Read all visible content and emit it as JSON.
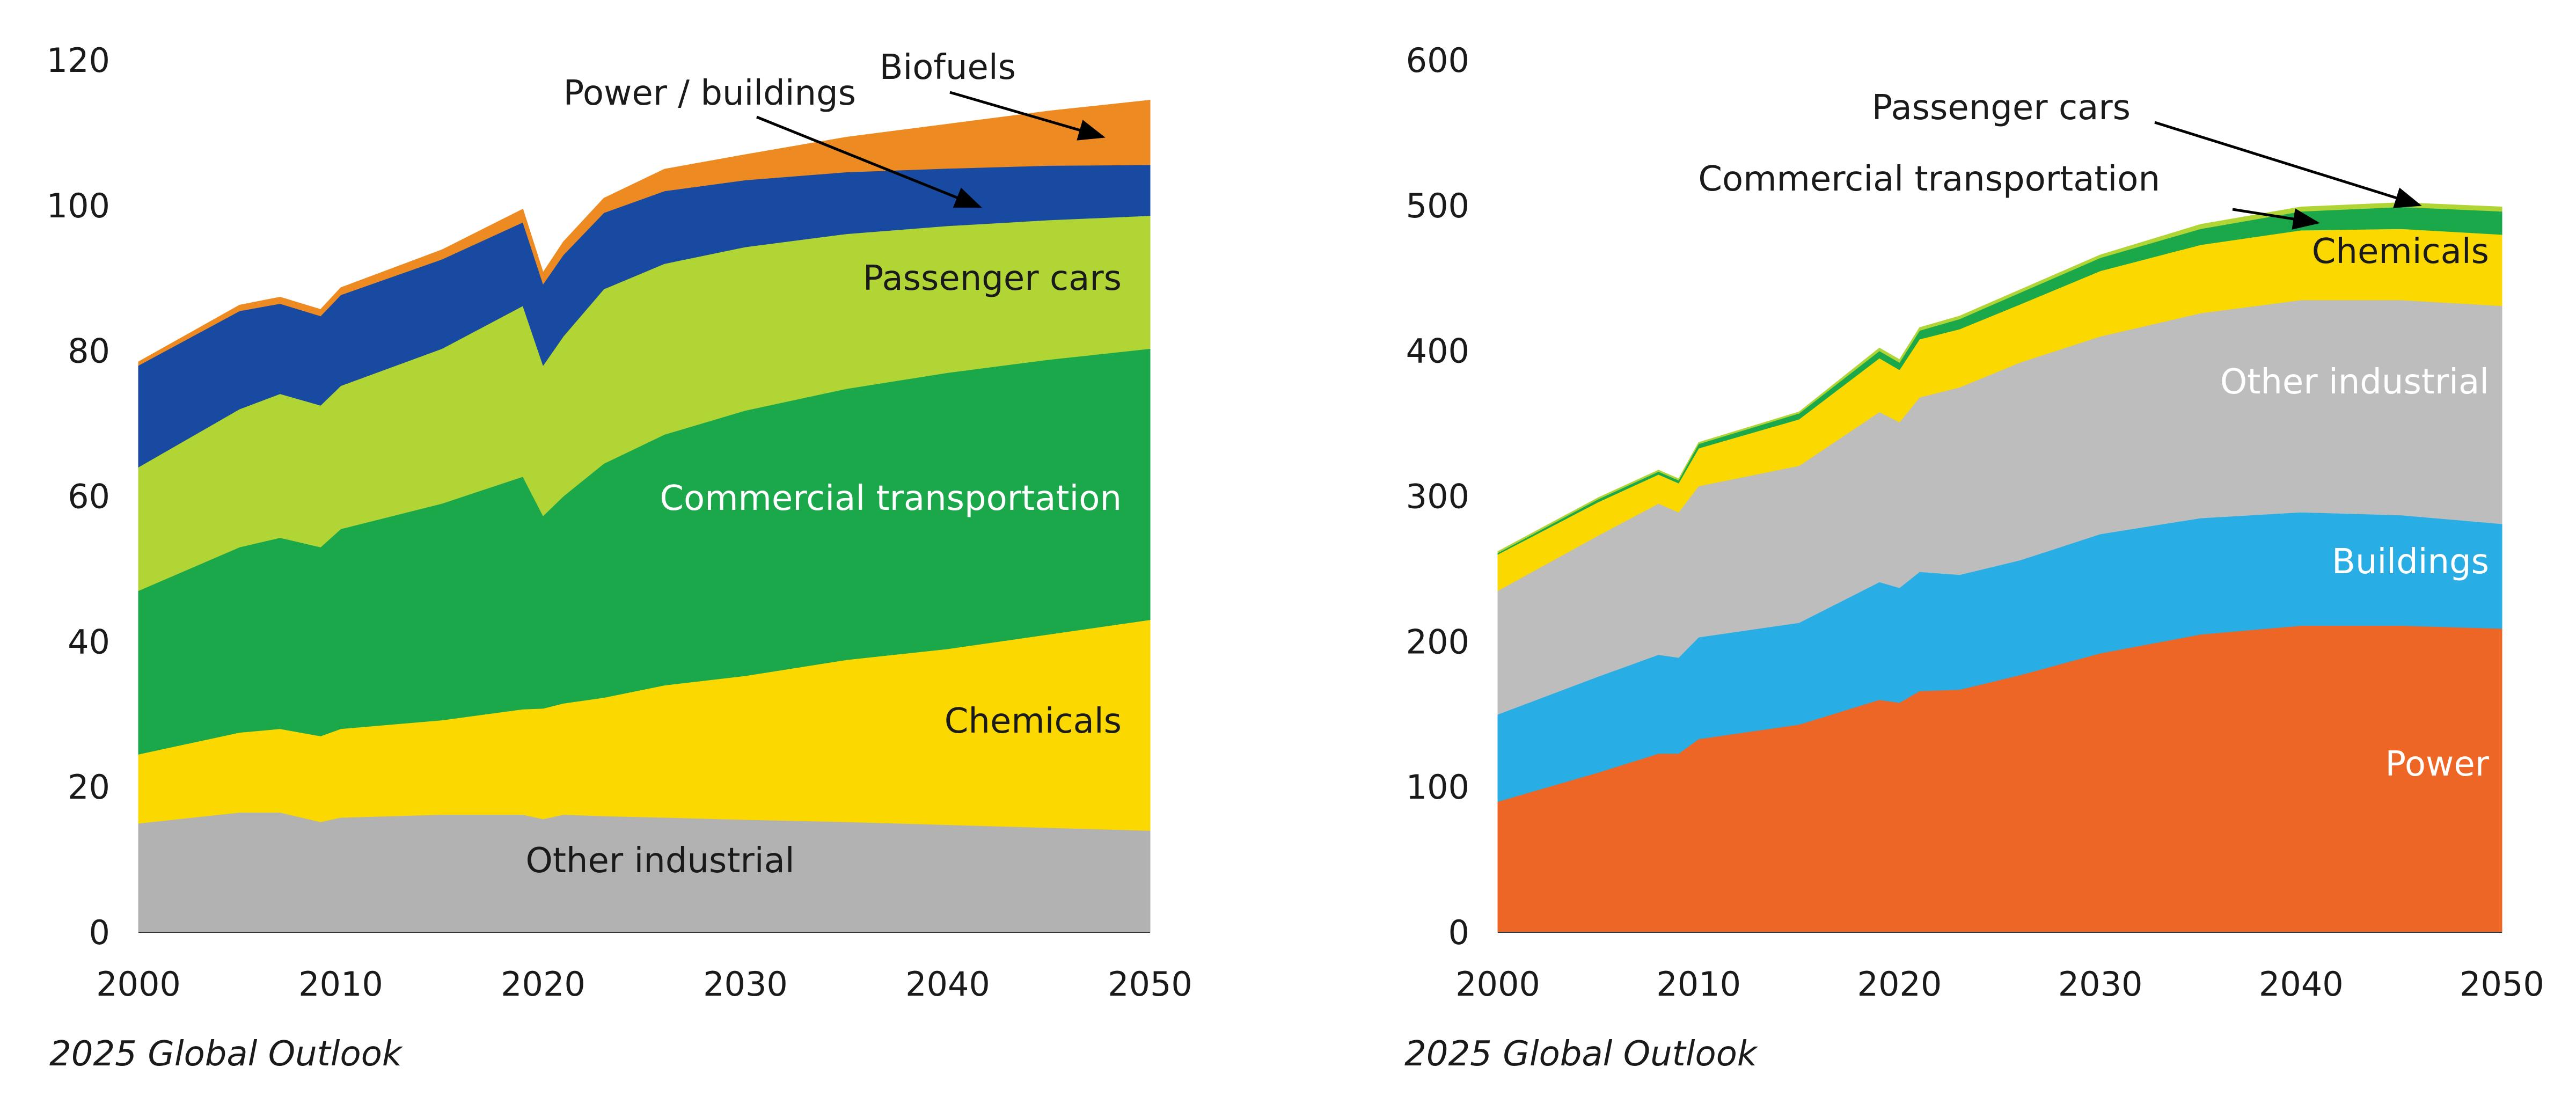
{
  "chart_data": [
    {
      "type": "area",
      "stacked": true,
      "x": [
        2000,
        2005,
        2007,
        2009,
        2010,
        2015,
        2019,
        2020,
        2021,
        2023,
        2026,
        2030,
        2035,
        2040,
        2045,
        2050
      ],
      "xlim": [
        2000,
        2050
      ],
      "ylim": [
        0,
        120
      ],
      "x_ticks": [
        "2000",
        "2010",
        "2020",
        "2030",
        "2040",
        "2050"
      ],
      "y_ticks": [
        "0",
        "20",
        "40",
        "60",
        "80",
        "100",
        "120"
      ],
      "series": [
        {
          "name": "Other industrial",
          "color": "#b2b2b2",
          "label_color": "#1a1a1a",
          "values": [
            15,
            16.5,
            16.5,
            15.2,
            15.8,
            16.2,
            16.2,
            15.6,
            16.2,
            16.0,
            15.8,
            15.5,
            15.2,
            14.8,
            14.4,
            14
          ]
        },
        {
          "name": "Chemicals",
          "color": "#fbd900",
          "label_color": "#1a1a1a",
          "values": [
            9.5,
            11,
            11.5,
            11.8,
            12.2,
            13,
            14.5,
            15.2,
            15.3,
            16.3,
            18.2,
            19.8,
            22.3,
            24.2,
            26.6,
            29
          ]
        },
        {
          "name": "Commercial transportation",
          "color": "#1aa84b",
          "label_color": "#ffffff",
          "values": [
            22.5,
            25.5,
            26.3,
            26,
            27.5,
            29.8,
            32,
            26.5,
            28.5,
            32.2,
            34.5,
            36.5,
            37.3,
            38,
            37.8,
            37.3
          ]
        },
        {
          "name": "Passenger cars",
          "color": "#b0d535",
          "label_color": "#1a1a1a",
          "values": [
            17,
            19,
            19.8,
            19.5,
            19.7,
            21.3,
            23.5,
            20.7,
            22,
            24,
            23.5,
            22.5,
            21.3,
            20.2,
            19.2,
            18.3
          ]
        },
        {
          "name": "Power / buildings",
          "color": "#174aa0",
          "label_color": "#1a1a1a",
          "values": [
            14,
            13.5,
            12.4,
            12.3,
            12.5,
            12.3,
            11.5,
            11.2,
            11.2,
            10.5,
            10,
            9.2,
            8.5,
            7.9,
            7.5,
            7
          ]
        },
        {
          "name": "Biofuels",
          "color": "#ed8b22",
          "label_color": "#1a1a1a",
          "values": [
            0.5,
            0.8,
            0.9,
            0.9,
            1,
            1.3,
            1.8,
            1.6,
            1.8,
            2,
            3,
            3.5,
            4.8,
            6.1,
            7.5,
            8.9
          ]
        }
      ],
      "source": "2025 Global Outlook"
    },
    {
      "type": "area",
      "stacked": true,
      "x": [
        2000,
        2005,
        2008,
        2009,
        2010,
        2015,
        2019,
        2020,
        2021,
        2023,
        2026,
        2030,
        2035,
        2040,
        2045,
        2050
      ],
      "xlim": [
        2000,
        2050
      ],
      "ylim": [
        0,
        600
      ],
      "x_ticks": [
        "2000",
        "2010",
        "2020",
        "2030",
        "2040",
        "2050"
      ],
      "y_ticks": [
        "0",
        "100",
        "200",
        "300",
        "400",
        "500",
        "600"
      ],
      "series": [
        {
          "name": "Power",
          "color": "#ee6625",
          "label_color": "#ffffff",
          "values": [
            90,
            110,
            123,
            123,
            133,
            143,
            160,
            158,
            166,
            167,
            177,
            192,
            205,
            211,
            211,
            209
          ]
        },
        {
          "name": "Buildings",
          "color": "#28aee4",
          "label_color": "#ffffff",
          "values": [
            60,
            66,
            68,
            66,
            70,
            70,
            81,
            79,
            82,
            79,
            79,
            82,
            80,
            78,
            76,
            72
          ]
        },
        {
          "name": "Other industrial",
          "color": "#bdbdbd",
          "label_color": "#ffffff",
          "values": [
            85,
            97,
            104,
            100,
            104,
            108,
            117,
            114,
            120,
            129,
            136,
            136,
            141,
            146,
            148,
            150
          ]
        },
        {
          "name": "Chemicals",
          "color": "#fbd900",
          "label_color": "#1a1a1a",
          "values": [
            25,
            23,
            20,
            20,
            26,
            32,
            37,
            36,
            40,
            40,
            40,
            45,
            47,
            48,
            49,
            49
          ]
        },
        {
          "name": "Commercial transportation",
          "color": "#1aa84b",
          "label_color": "#1a1a1a",
          "values": [
            1,
            2,
            2,
            2,
            3,
            4,
            5,
            5,
            6,
            7,
            8,
            9,
            11,
            13,
            15,
            16
          ]
        },
        {
          "name": "Passenger cars",
          "color": "#b0d535",
          "label_color": "#1a1a1a",
          "values": [
            1,
            1,
            1,
            1,
            1,
            1,
            2,
            2,
            2,
            2,
            2,
            2,
            3,
            3,
            3,
            3
          ]
        }
      ],
      "source": "2025 Global Outlook"
    }
  ]
}
